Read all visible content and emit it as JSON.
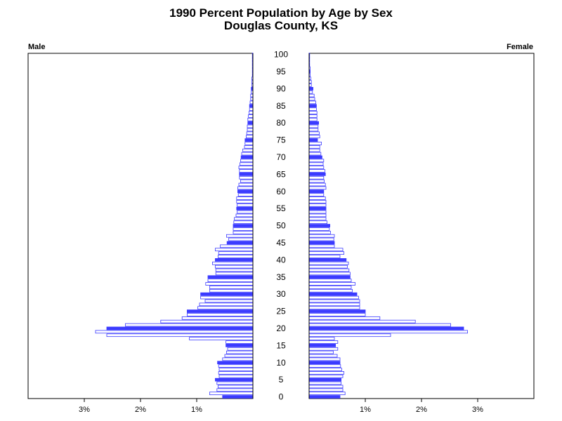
{
  "chart_data": {
    "type": "bar",
    "title": "1990 Percent Population by Age by Sex",
    "subtitle": "Douglas County, KS",
    "left_label": "Male",
    "right_label": "Female",
    "age_ticks": [
      0,
      5,
      10,
      15,
      20,
      25,
      30,
      35,
      40,
      45,
      50,
      55,
      60,
      65,
      70,
      75,
      80,
      85,
      90,
      95,
      100
    ],
    "x_ticks": [
      1,
      2,
      3
    ],
    "x_tick_labels": [
      "1%",
      "2%",
      "3%"
    ],
    "xlim": [
      0,
      4
    ],
    "bar_color": "#3b3bff",
    "ages": [
      0,
      1,
      2,
      3,
      4,
      5,
      6,
      7,
      8,
      9,
      10,
      11,
      12,
      13,
      14,
      15,
      16,
      17,
      18,
      19,
      20,
      21,
      22,
      23,
      24,
      25,
      26,
      27,
      28,
      29,
      30,
      31,
      32,
      33,
      34,
      35,
      36,
      37,
      38,
      39,
      40,
      41,
      42,
      43,
      44,
      45,
      46,
      47,
      48,
      49,
      50,
      51,
      52,
      53,
      54,
      55,
      56,
      57,
      58,
      59,
      60,
      61,
      62,
      63,
      64,
      65,
      66,
      67,
      68,
      69,
      70,
      71,
      72,
      73,
      74,
      75,
      76,
      77,
      78,
      79,
      80,
      81,
      82,
      83,
      84,
      85,
      86,
      87,
      88,
      89,
      90,
      91,
      92,
      93,
      94,
      95,
      96,
      97,
      98,
      99,
      100
    ],
    "male": [
      0.54,
      0.77,
      0.64,
      0.62,
      0.64,
      0.67,
      0.6,
      0.61,
      0.6,
      0.61,
      0.63,
      0.54,
      0.5,
      0.47,
      0.45,
      0.48,
      0.48,
      1.13,
      2.6,
      2.8,
      2.6,
      2.27,
      1.64,
      1.26,
      1.17,
      1.17,
      0.98,
      0.95,
      0.85,
      0.93,
      0.93,
      0.77,
      0.77,
      0.84,
      0.8,
      0.8,
      0.66,
      0.66,
      0.67,
      0.72,
      0.67,
      0.62,
      0.61,
      0.67,
      0.58,
      0.46,
      0.43,
      0.47,
      0.35,
      0.35,
      0.35,
      0.34,
      0.33,
      0.3,
      0.28,
      0.29,
      0.28,
      0.29,
      0.29,
      0.26,
      0.27,
      0.27,
      0.25,
      0.22,
      0.24,
      0.24,
      0.24,
      0.25,
      0.23,
      0.22,
      0.21,
      0.2,
      0.18,
      0.15,
      0.14,
      0.14,
      0.12,
      0.11,
      0.1,
      0.1,
      0.09,
      0.09,
      0.08,
      0.07,
      0.06,
      0.06,
      0.05,
      0.04,
      0.04,
      0.03,
      0.03,
      0.02,
      0.02,
      0.02,
      0.01,
      0.01,
      0.01,
      0.01,
      0.01,
      0.01,
      0.01
    ],
    "female": [
      0.55,
      0.64,
      0.6,
      0.6,
      0.57,
      0.57,
      0.6,
      0.62,
      0.58,
      0.56,
      0.55,
      0.55,
      0.5,
      0.43,
      0.51,
      0.47,
      0.51,
      0.45,
      1.45,
      2.82,
      2.75,
      2.52,
      1.89,
      1.26,
      1.0,
      1.0,
      0.9,
      0.9,
      0.9,
      0.88,
      0.85,
      0.77,
      0.75,
      0.82,
      0.75,
      0.73,
      0.73,
      0.71,
      0.68,
      0.7,
      0.66,
      0.55,
      0.62,
      0.6,
      0.45,
      0.45,
      0.44,
      0.45,
      0.38,
      0.36,
      0.37,
      0.32,
      0.3,
      0.3,
      0.3,
      0.3,
      0.3,
      0.3,
      0.29,
      0.26,
      0.26,
      0.3,
      0.29,
      0.27,
      0.26,
      0.29,
      0.28,
      0.26,
      0.25,
      0.26,
      0.23,
      0.21,
      0.19,
      0.19,
      0.22,
      0.15,
      0.19,
      0.18,
      0.16,
      0.16,
      0.17,
      0.14,
      0.14,
      0.14,
      0.13,
      0.13,
      0.12,
      0.1,
      0.09,
      0.06,
      0.07,
      0.04,
      0.04,
      0.03,
      0.02,
      0.02,
      0.02,
      0.01,
      0.01,
      0.01,
      0.01
    ]
  }
}
